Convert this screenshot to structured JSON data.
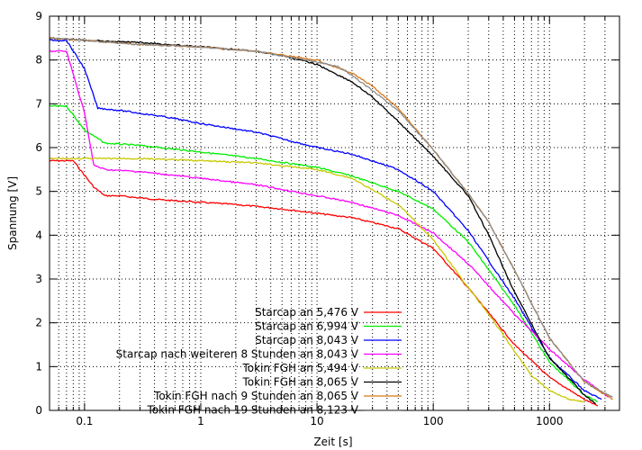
{
  "chart_data": {
    "type": "line",
    "title": "",
    "xlabel": "Zeit [s]",
    "ylabel": "Spannung [V]",
    "xscale": "log",
    "xlim": [
      0.05,
      4000
    ],
    "ylim": [
      0,
      9
    ],
    "grid": true,
    "legend_position": "bottom-right",
    "x_ticks": [
      {
        "value": 0.1,
        "label": "0.1"
      },
      {
        "value": 1,
        "label": "1"
      },
      {
        "value": 10,
        "label": "10"
      },
      {
        "value": 100,
        "label": "100"
      },
      {
        "value": 1000,
        "label": "1000"
      }
    ],
    "y_ticks": [
      {
        "value": 0,
        "label": "0"
      },
      {
        "value": 1,
        "label": "1"
      },
      {
        "value": 2,
        "label": "2"
      },
      {
        "value": 3,
        "label": "3"
      },
      {
        "value": 4,
        "label": "4"
      },
      {
        "value": 5,
        "label": "5"
      },
      {
        "value": 6,
        "label": "6"
      },
      {
        "value": 7,
        "label": "7"
      },
      {
        "value": 8,
        "label": "8"
      },
      {
        "value": 9,
        "label": "9"
      }
    ],
    "series": [
      {
        "name": "Starcap an 5,476 V",
        "color": "#ff0000",
        "x": [
          0.05,
          0.08,
          0.12,
          0.15,
          0.2,
          0.3,
          0.5,
          1,
          2,
          5,
          10,
          20,
          50,
          100,
          200,
          500,
          1000,
          2000,
          2600
        ],
        "y": [
          5.7,
          5.7,
          5.1,
          4.9,
          4.9,
          4.85,
          4.8,
          4.75,
          4.7,
          4.6,
          4.5,
          4.4,
          4.15,
          3.7,
          2.8,
          1.5,
          0.75,
          0.25,
          0.1
        ]
      },
      {
        "name": "Starcap an 6,994 V",
        "color": "#00ee00",
        "x": [
          0.05,
          0.07,
          0.1,
          0.15,
          0.3,
          1,
          3,
          10,
          20,
          50,
          100,
          200,
          500,
          1000,
          2000,
          2600
        ],
        "y": [
          6.95,
          6.95,
          6.4,
          6.1,
          6.05,
          5.9,
          5.75,
          5.55,
          5.35,
          5.0,
          4.6,
          3.85,
          2.4,
          1.1,
          0.35,
          0.2
        ]
      },
      {
        "name": "Starcap an 8,043 V",
        "color": "#0000ff",
        "x": [
          0.05,
          0.07,
          0.1,
          0.13,
          0.2,
          0.5,
          1,
          3,
          10,
          20,
          50,
          100,
          200,
          500,
          1000,
          2000,
          2800
        ],
        "y": [
          8.45,
          8.45,
          7.8,
          6.9,
          6.85,
          6.7,
          6.55,
          6.35,
          6.0,
          5.85,
          5.5,
          5.0,
          4.1,
          2.55,
          1.2,
          0.45,
          0.25
        ]
      },
      {
        "name": "Starcap nach weiteren 8 Stunden an 8,043 V",
        "color": "#ff00ff",
        "x": [
          0.05,
          0.07,
          0.1,
          0.12,
          0.15,
          0.3,
          1,
          3,
          10,
          20,
          50,
          100,
          200,
          500,
          1000,
          2000,
          3200
        ],
        "y": [
          8.2,
          8.2,
          6.8,
          5.6,
          5.5,
          5.45,
          5.3,
          5.15,
          4.9,
          4.75,
          4.45,
          4.05,
          3.35,
          2.2,
          1.4,
          0.7,
          0.3
        ]
      },
      {
        "name": "Tokin FGH an 5,494 V",
        "color": "#c8c800",
        "x": [
          0.05,
          0.1,
          0.3,
          1,
          3,
          10,
          20,
          50,
          100,
          200,
          300,
          500,
          700,
          1000,
          1500,
          2000
        ],
        "y": [
          5.75,
          5.75,
          5.75,
          5.7,
          5.65,
          5.5,
          5.3,
          4.7,
          3.9,
          2.8,
          2.2,
          1.35,
          0.8,
          0.45,
          0.25,
          0.2
        ]
      },
      {
        "name": "Tokin FGH an 8,065 V",
        "color": "#000000",
        "x": [
          0.05,
          0.1,
          0.3,
          1,
          3,
          5,
          10,
          20,
          30,
          50,
          100,
          200,
          300,
          500,
          1000,
          2000,
          2500
        ],
        "y": [
          8.5,
          8.45,
          8.4,
          8.3,
          8.2,
          8.1,
          7.9,
          7.5,
          7.15,
          6.6,
          5.8,
          4.9,
          4.0,
          2.7,
          1.2,
          0.35,
          0.15
        ]
      },
      {
        "name": "Tokin FGH nach 9 Stunden an 8,065 V",
        "color": "#d87818",
        "x": [
          0.05,
          0.1,
          0.3,
          1,
          3,
          10,
          20,
          30,
          50,
          100,
          200,
          300,
          500,
          1000,
          2000,
          3500
        ],
        "y": [
          8.5,
          8.45,
          8.35,
          8.3,
          8.2,
          8.0,
          7.7,
          7.4,
          6.9,
          5.95,
          4.95,
          4.3,
          3.2,
          1.65,
          0.65,
          0.25
        ]
      },
      {
        "name": "Tokin FGH nach 19 Stunden an 8,123 V",
        "color": "#8c8c8c",
        "x": [
          0.05,
          0.1,
          0.3,
          1,
          3,
          10,
          15,
          20,
          30,
          50,
          100,
          200,
          300,
          500,
          1000,
          2000,
          3500
        ],
        "y": [
          8.5,
          8.45,
          8.35,
          8.3,
          8.2,
          7.95,
          7.85,
          7.65,
          7.3,
          6.85,
          5.95,
          4.95,
          4.3,
          3.2,
          1.65,
          0.65,
          0.3
        ]
      }
    ]
  }
}
